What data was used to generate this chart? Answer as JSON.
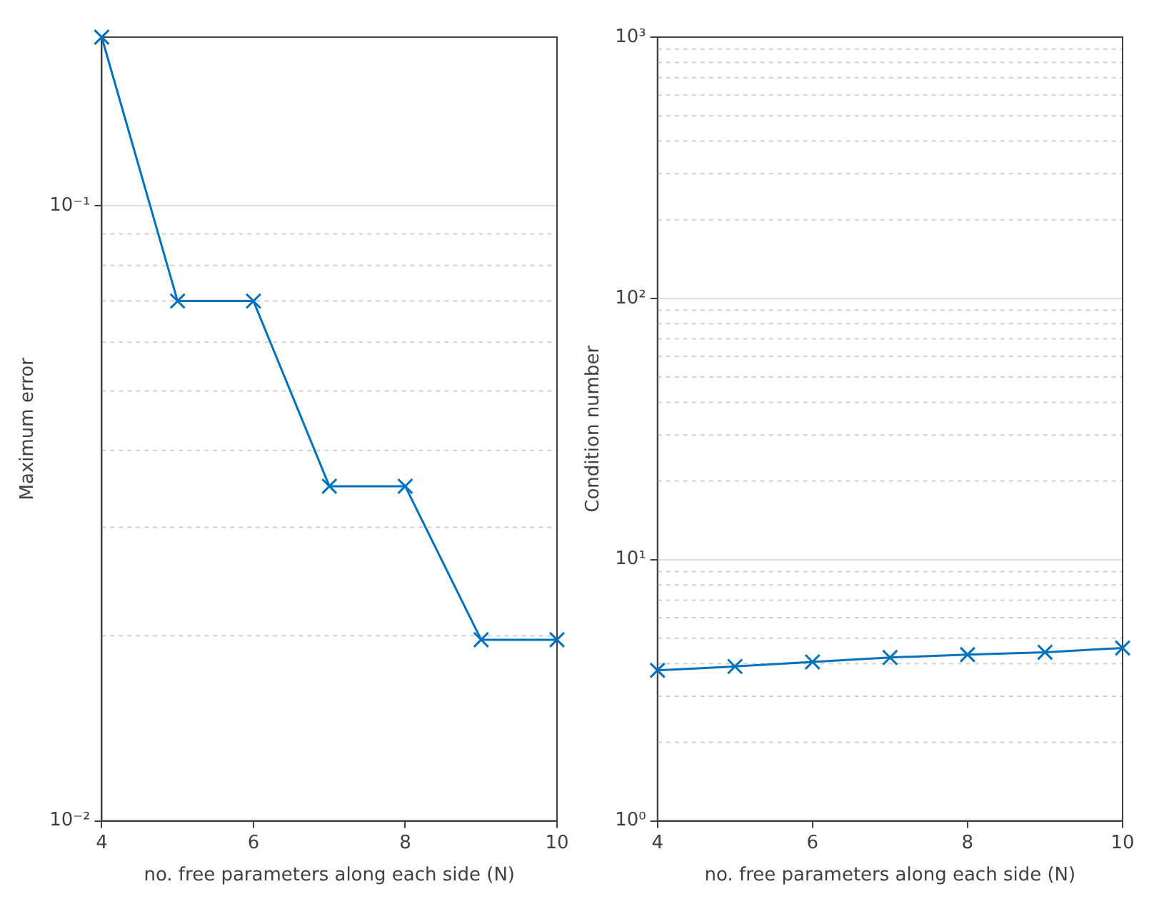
{
  "chart_data": [
    {
      "type": "line",
      "xlabel": "no. free parameters along each side (N)",
      "ylabel": "Maximum error",
      "x": [
        4,
        5,
        6,
        7,
        8,
        9,
        10
      ],
      "series": [
        {
          "color": "#0072bd",
          "values": [
            0.188,
            0.07,
            0.07,
            0.035,
            0.035,
            0.0197,
            0.0197
          ]
        }
      ],
      "xlim": [
        4,
        10
      ],
      "xticks": [
        4,
        6,
        8,
        10
      ],
      "ylim": [
        0.01,
        0.188
      ],
      "yticks": [
        {
          "value": 0.01,
          "label": "10⁻²"
        },
        {
          "value": 0.1,
          "label": "10⁻¹"
        }
      ],
      "log": "y",
      "grid": "y",
      "marker": "cross",
      "line_style": "solid",
      "legend": false
    },
    {
      "type": "line",
      "xlabel": "no. free parameters along each side (N)",
      "ylabel": "Condition number",
      "x": [
        4,
        5,
        6,
        7,
        8,
        9,
        10
      ],
      "series": [
        {
          "color": "#0072bd",
          "values": [
            3.77,
            3.9,
            4.06,
            4.22,
            4.33,
            4.42,
            4.59
          ]
        }
      ],
      "xlim": [
        4,
        10
      ],
      "xticks": [
        4,
        6,
        8,
        10
      ],
      "ylim": [
        1,
        1000
      ],
      "yticks": [
        {
          "value": 1,
          "label": "10⁰"
        },
        {
          "value": 10,
          "label": "10¹"
        },
        {
          "value": 100,
          "label": "10²"
        },
        {
          "value": 1000,
          "label": "10³"
        }
      ],
      "log": "y",
      "grid": "y",
      "marker": "cross",
      "line_style": "solid",
      "legend": false
    }
  ]
}
